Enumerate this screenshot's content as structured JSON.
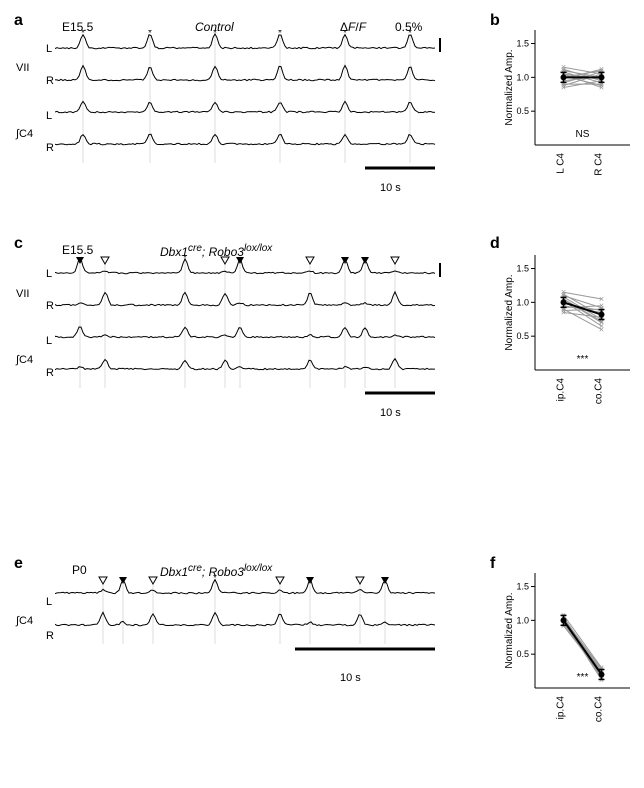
{
  "panels": {
    "a": {
      "label": "a",
      "titles": [
        "E15.5",
        "Control",
        "ΔF/F",
        "0.5%"
      ],
      "rows": [
        "L",
        "R",
        "L",
        "R"
      ],
      "groups": [
        "VII",
        "∫C4"
      ],
      "scale_bar": "10 s"
    },
    "b": {
      "label": "b",
      "ylabel": "Normalized Amp.",
      "ylim": [
        0,
        1.7
      ],
      "yticks": [
        0.5,
        1.0,
        1.5
      ],
      "xlabels": [
        "L C4",
        "R C4"
      ],
      "sig": "NS",
      "xdata": [
        1,
        2
      ],
      "lines": [
        [
          1.05,
          0.98
        ],
        [
          0.95,
          1.02
        ],
        [
          1.08,
          0.92
        ],
        [
          0.92,
          1.08
        ],
        [
          1.12,
          0.95
        ],
        [
          0.88,
          1.05
        ],
        [
          1.02,
          0.88
        ],
        [
          0.98,
          1.12
        ],
        [
          1.1,
          1.0
        ],
        [
          0.9,
          0.9
        ],
        [
          1.15,
          1.05
        ],
        [
          0.85,
          0.95
        ],
        [
          1.0,
          1.1
        ],
        [
          1.05,
          0.85
        ]
      ],
      "mean": [
        1.0,
        1.0
      ]
    },
    "c": {
      "label": "c",
      "titles": [
        "E15.5",
        "Dbx1cre; Robo3lox/lox"
      ],
      "rows": [
        "L",
        "R",
        "L",
        "R"
      ],
      "groups": [
        "VII",
        "∫C4"
      ],
      "scale_bar": "10 s"
    },
    "d": {
      "label": "d",
      "ylabel": "Normalized Amp.",
      "ylim": [
        0,
        1.7
      ],
      "yticks": [
        0.5,
        1.0,
        1.5
      ],
      "xlabels": [
        "ip.C4",
        "co.C4"
      ],
      "sig": "***",
      "lines": [
        [
          1.05,
          0.7
        ],
        [
          0.95,
          0.85
        ],
        [
          1.08,
          0.75
        ],
        [
          0.92,
          0.95
        ],
        [
          1.12,
          0.8
        ],
        [
          0.88,
          0.9
        ],
        [
          1.02,
          0.65
        ],
        [
          0.98,
          0.88
        ],
        [
          1.1,
          0.92
        ],
        [
          0.9,
          0.6
        ],
        [
          1.15,
          1.05
        ],
        [
          0.85,
          0.78
        ],
        [
          1.0,
          0.82
        ],
        [
          1.05,
          0.72
        ]
      ],
      "mean": [
        1.0,
        0.82
      ]
    },
    "e": {
      "label": "e",
      "titles": [
        "P0",
        "Dbx1cre; Robo3lox/lox"
      ],
      "rows": [
        "L",
        "R"
      ],
      "groups": [
        "∫C4"
      ],
      "scale_bar": "10 s"
    },
    "f": {
      "label": "f",
      "ylabel": "Normalized Amp.",
      "ylim": [
        0,
        1.7
      ],
      "yticks": [
        0.5,
        1.0,
        1.5
      ],
      "xlabels": [
        "ip.C4",
        "co.C4"
      ],
      "sig": "***",
      "lines": [
        [
          1.05,
          0.22
        ],
        [
          0.95,
          0.18
        ],
        [
          1.02,
          0.25
        ],
        [
          0.98,
          0.15
        ],
        [
          1.08,
          0.3
        ],
        [
          0.92,
          0.2
        ],
        [
          1.0,
          0.12
        ],
        [
          1.03,
          0.28
        ]
      ],
      "mean": [
        1.0,
        0.2
      ]
    }
  },
  "colors": {
    "trace": "#000000",
    "grid": "#bbbbbb",
    "line_gray": "#999999",
    "mean": "#000000"
  }
}
